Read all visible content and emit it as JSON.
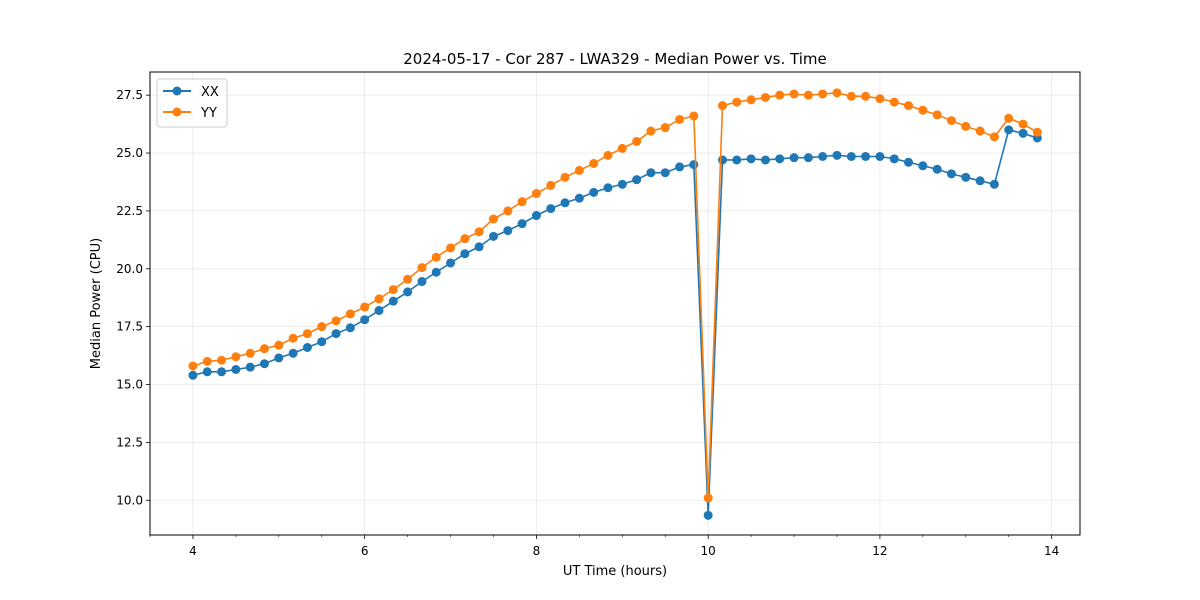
{
  "chart_data": {
    "type": "line",
    "title": "2024-05-17 - Cor 287 - LWA329 - Median Power vs. Time",
    "xlabel": "UT Time (hours)",
    "ylabel": "Median Power (CPU)",
    "xlim": [
      3.5,
      14.33
    ],
    "ylim": [
      8.5,
      28.5
    ],
    "xticks": [
      4,
      6,
      8,
      10,
      12,
      14
    ],
    "xtick_labels": [
      "4",
      "6",
      "8",
      "10",
      "12",
      "14"
    ],
    "yticks": [
      10.0,
      12.5,
      15.0,
      17.5,
      20.0,
      22.5,
      25.0,
      27.5
    ],
    "ytick_labels": [
      "10.0",
      "12.5",
      "15.0",
      "17.5",
      "20.0",
      "22.5",
      "25.0",
      "27.5"
    ],
    "grid": true,
    "legend_position": "top-left",
    "x": [
      4.0,
      4.167,
      4.333,
      4.5,
      4.667,
      4.833,
      5.0,
      5.167,
      5.333,
      5.5,
      5.667,
      5.833,
      6.0,
      6.167,
      6.333,
      6.5,
      6.667,
      6.833,
      7.0,
      7.167,
      7.333,
      7.5,
      7.667,
      7.833,
      8.0,
      8.167,
      8.333,
      8.5,
      8.667,
      8.833,
      9.0,
      9.167,
      9.333,
      9.5,
      9.667,
      9.833,
      10.0,
      10.167,
      10.333,
      10.5,
      10.667,
      10.833,
      11.0,
      11.167,
      11.333,
      11.5,
      11.667,
      11.833,
      12.0,
      12.167,
      12.333,
      12.5,
      12.667,
      12.833,
      13.0,
      13.167,
      13.333,
      13.5,
      13.667,
      13.833
    ],
    "series": [
      {
        "name": "XX",
        "color": "#1f77b4",
        "values": [
          15.4,
          15.55,
          15.55,
          15.65,
          15.75,
          15.9,
          16.15,
          16.35,
          16.6,
          16.85,
          17.2,
          17.45,
          17.8,
          18.2,
          18.6,
          19.0,
          19.45,
          19.85,
          20.25,
          20.65,
          20.95,
          21.4,
          21.65,
          21.95,
          22.3,
          22.6,
          22.85,
          23.05,
          23.3,
          23.5,
          23.65,
          23.85,
          24.15,
          24.15,
          24.4,
          24.5,
          9.35,
          24.7,
          24.7,
          24.75,
          24.7,
          24.75,
          24.8,
          24.8,
          24.85,
          24.9,
          24.85,
          24.85,
          24.85,
          24.75,
          24.6,
          24.45,
          24.3,
          24.1,
          23.95,
          23.8,
          23.65,
          26.0,
          25.85,
          25.65
        ]
      },
      {
        "name": "YY",
        "color": "#ff7f0e",
        "values": [
          15.8,
          16.0,
          16.05,
          16.2,
          16.35,
          16.55,
          16.7,
          17.0,
          17.2,
          17.5,
          17.75,
          18.05,
          18.35,
          18.7,
          19.1,
          19.55,
          20.05,
          20.5,
          20.9,
          21.3,
          21.6,
          22.15,
          22.5,
          22.9,
          23.25,
          23.6,
          23.95,
          24.25,
          24.55,
          24.9,
          25.2,
          25.5,
          25.95,
          26.1,
          26.45,
          26.6,
          10.1,
          27.05,
          27.2,
          27.3,
          27.4,
          27.5,
          27.55,
          27.5,
          27.55,
          27.6,
          27.45,
          27.45,
          27.35,
          27.2,
          27.05,
          26.85,
          26.65,
          26.4,
          26.15,
          25.95,
          25.7,
          26.5,
          26.25,
          25.9
        ]
      }
    ]
  }
}
